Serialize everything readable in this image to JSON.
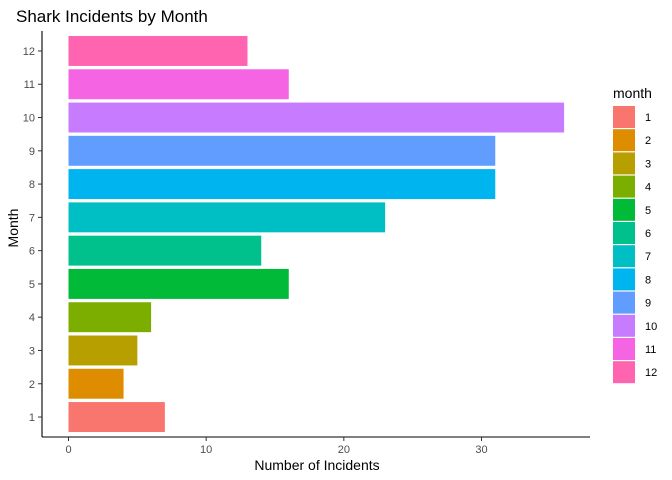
{
  "chart_data": {
    "type": "bar",
    "orientation": "horizontal",
    "title": "Shark Incidents by Month",
    "xlabel": "Number of Incidents",
    "ylabel": "Month",
    "categories": [
      "1",
      "2",
      "3",
      "4",
      "5",
      "6",
      "7",
      "8",
      "9",
      "10",
      "11",
      "12"
    ],
    "values": [
      7,
      4,
      5,
      6,
      16,
      14,
      23,
      31,
      31,
      36,
      16,
      13
    ],
    "colors": [
      "#F8766D",
      "#DE8C00",
      "#B79F00",
      "#7CAE00",
      "#00BA38",
      "#00C08B",
      "#00BFC4",
      "#00B4F0",
      "#619CFF",
      "#C77CFF",
      "#F564E3",
      "#FF64B0"
    ],
    "xlim": [
      0,
      37.8
    ],
    "xticks": [
      0,
      10,
      20,
      30
    ],
    "grid": false,
    "legend": {
      "title": "month",
      "position": "right"
    }
  }
}
